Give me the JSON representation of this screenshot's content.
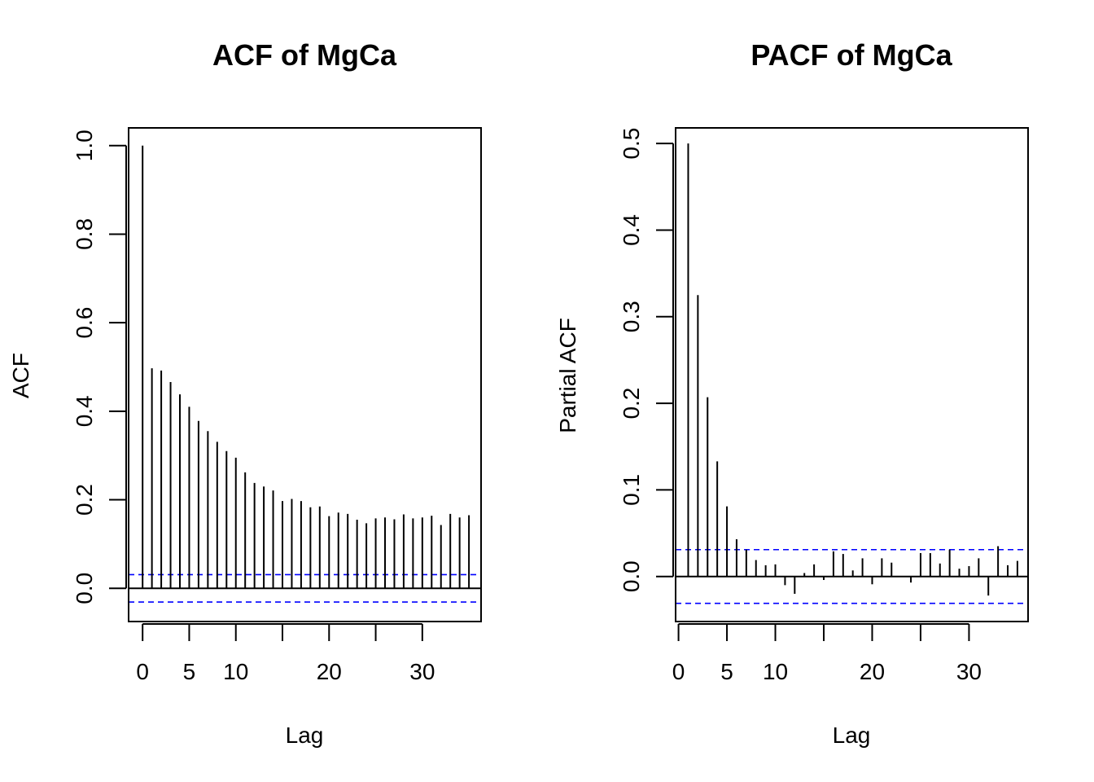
{
  "chart_data": [
    {
      "type": "bar",
      "title": "ACF of MgCa",
      "xlabel": "Lag",
      "ylabel": "ACF",
      "xlim": [
        -1.5,
        36.3
      ],
      "ylim": [
        -0.075,
        1.04
      ],
      "xticks": [
        0,
        5,
        10,
        20,
        30
      ],
      "yticks": [
        0.0,
        0.2,
        0.4,
        0.6,
        0.8,
        1.0
      ],
      "ytick_labels": [
        "0.0",
        "0.2",
        "0.4",
        "0.6",
        "0.8",
        "1.0"
      ],
      "grid": false,
      "confidence_band": 0.031,
      "band_color": "#0000ff",
      "lags": [
        0,
        1,
        2,
        3,
        4,
        5,
        6,
        7,
        8,
        9,
        10,
        11,
        12,
        13,
        14,
        15,
        16,
        17,
        18,
        19,
        20,
        21,
        22,
        23,
        24,
        25,
        26,
        27,
        28,
        29,
        30,
        31,
        32,
        33,
        34,
        35
      ],
      "values": [
        1.0,
        0.497,
        0.492,
        0.466,
        0.438,
        0.41,
        0.378,
        0.355,
        0.331,
        0.31,
        0.295,
        0.262,
        0.238,
        0.23,
        0.221,
        0.197,
        0.202,
        0.197,
        0.183,
        0.185,
        0.163,
        0.171,
        0.168,
        0.155,
        0.147,
        0.158,
        0.16,
        0.156,
        0.167,
        0.158,
        0.16,
        0.164,
        0.143,
        0.168,
        0.16,
        0.165
      ]
    },
    {
      "type": "bar",
      "title": "PACF of MgCa",
      "xlabel": "Lag",
      "ylabel": "Partial ACF",
      "xlim": [
        -0.3,
        36.1
      ],
      "ylim": [
        -0.052,
        0.518
      ],
      "xticks": [
        0,
        5,
        10,
        20,
        30
      ],
      "yticks": [
        0.0,
        0.1,
        0.2,
        0.3,
        0.4,
        0.5
      ],
      "ytick_labels": [
        "0.0",
        "0.1",
        "0.2",
        "0.3",
        "0.4",
        "0.5"
      ],
      "grid": false,
      "confidence_band": 0.031,
      "band_color": "#0000ff",
      "lags": [
        1,
        2,
        3,
        4,
        5,
        6,
        7,
        8,
        9,
        10,
        11,
        12,
        13,
        14,
        15,
        16,
        17,
        18,
        19,
        20,
        21,
        22,
        23,
        24,
        25,
        26,
        27,
        28,
        29,
        30,
        31,
        32,
        33,
        34,
        35
      ],
      "values": [
        0.5,
        0.325,
        0.207,
        0.133,
        0.081,
        0.043,
        0.031,
        0.019,
        0.013,
        0.014,
        -0.01,
        -0.02,
        0.004,
        0.014,
        -0.004,
        0.029,
        0.026,
        0.007,
        0.021,
        -0.009,
        0.021,
        0.016,
        0.0,
        -0.007,
        0.027,
        0.027,
        0.015,
        0.031,
        0.009,
        0.012,
        0.021,
        -0.022,
        0.035,
        0.013,
        0.018
      ]
    }
  ]
}
